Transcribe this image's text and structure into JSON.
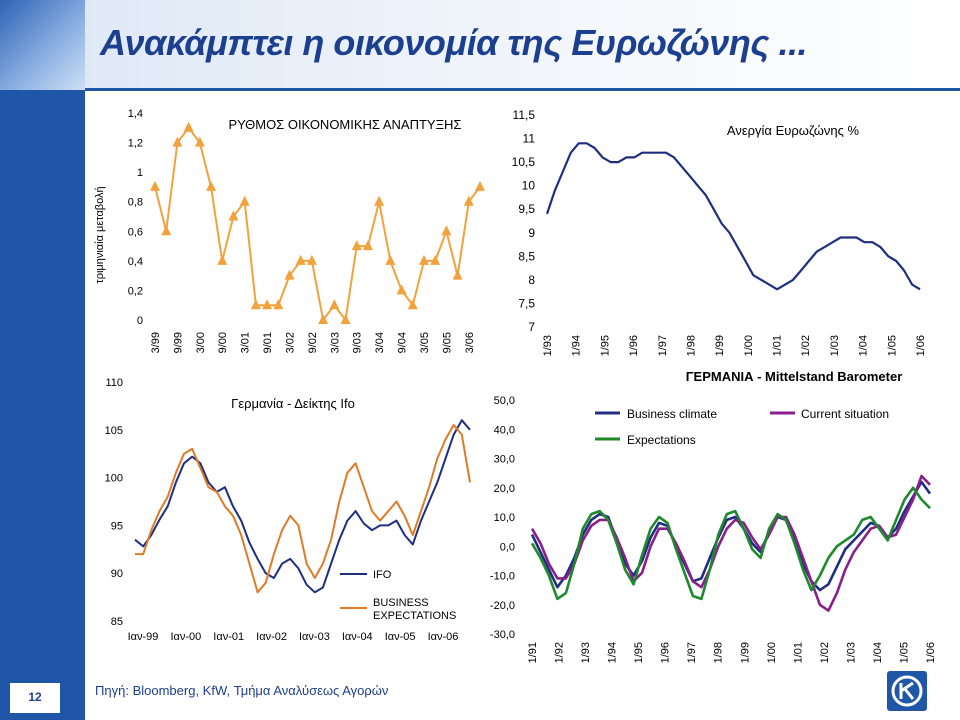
{
  "title": "Ανακάμπτει η οικονομία της Ευρωζώνης ...",
  "footer": {
    "source": "Πηγή: Bloomberg, KfW, Τμήμα Αναλύσεως Αγορών",
    "page_number": "12"
  },
  "colors": {
    "brand_blue": "#1f56a8",
    "title_blue": "#1c3f8f",
    "gdp_orange": "#f2a23c",
    "unemp_blue": "#1e2f82",
    "ifo_blue": "#1e2f82",
    "ifo_orange": "#e07a27",
    "mit_blue": "#1e2f82",
    "mit_magenta": "#8a1e8a",
    "mit_green": "#1f8a2c"
  },
  "chart_data": [
    {
      "type": "line",
      "title": "ΡΥΘΜΟΣ ΟΙΚΟΝΟΜΙΚΗΣ ΑΝΑΠΤΥΞΗΣ",
      "ylabel": "τριμηνιαία μεταβολή",
      "xlabel": "",
      "ylim": [
        0,
        1.4
      ],
      "yticks": [
        "0",
        "0,2",
        "0,4",
        "0,6",
        "0,8",
        "1",
        "1,2",
        "1,4"
      ],
      "xtick_labels": [
        "3/99",
        "9/99",
        "3/00",
        "9/00",
        "3/01",
        "9/01",
        "3/02",
        "9/02",
        "3/03",
        "9/03",
        "3/04",
        "9/04",
        "3/05",
        "9/05",
        "3/06"
      ],
      "series": [
        {
          "name": "",
          "values": [
            0.9,
            0.6,
            1.2,
            1.3,
            1.2,
            0.9,
            0.4,
            0.7,
            0.8,
            0.1,
            0.1,
            0.1,
            0.3,
            0.4,
            0.4,
            0.0,
            0.1,
            0.0,
            0.5,
            0.5,
            0.8,
            0.4,
            0.2,
            0.1,
            0.4,
            0.4,
            0.6,
            0.3,
            0.8,
            0.9
          ]
        }
      ]
    },
    {
      "type": "line",
      "title": "Ανεργία Ευρωζώνης %",
      "ylim": [
        7,
        11.5
      ],
      "yticks": [
        "7",
        "7,5",
        "8",
        "8,5",
        "9",
        "9,5",
        "10",
        "10,5",
        "11",
        "11,5"
      ],
      "xtick_labels": [
        "1/93",
        "1/94",
        "1/95",
        "1/96",
        "1/97",
        "1/98",
        "1/99",
        "1/00",
        "1/01",
        "1/02",
        "1/03",
        "1/04",
        "1/05",
        "1/06"
      ],
      "series": [
        {
          "name": "",
          "values": [
            9.4,
            9.9,
            10.3,
            10.7,
            10.9,
            10.9,
            10.8,
            10.6,
            10.5,
            10.5,
            10.6,
            10.6,
            10.7,
            10.7,
            10.7,
            10.7,
            10.6,
            10.4,
            10.2,
            10.0,
            9.8,
            9.5,
            9.2,
            9.0,
            8.7,
            8.4,
            8.1,
            8.0,
            7.9,
            7.8,
            7.9,
            8.0,
            8.2,
            8.4,
            8.6,
            8.7,
            8.8,
            8.9,
            8.9,
            8.9,
            8.8,
            8.8,
            8.7,
            8.5,
            8.4,
            8.2,
            7.9,
            7.8
          ]
        }
      ]
    },
    {
      "type": "line",
      "title": "Γερμανία - Δείκτης Ifo",
      "ylim": [
        85,
        110
      ],
      "yticks": [
        "85",
        "90",
        "95",
        "100",
        "105",
        "110"
      ],
      "xtick_labels": [
        "Ιαν-99",
        "Ιαν-00",
        "Ιαν-01",
        "Ιαν-02",
        "Ιαν-03",
        "Ιαν-04",
        "Ιαν-05",
        "Ιαν-06"
      ],
      "legend": [
        "IFO",
        "BUSINESS EXPECTATIONS"
      ],
      "legend_position": "bottom-right",
      "series": [
        {
          "name": "IFO",
          "values": [
            93.5,
            92.8,
            94.0,
            95.6,
            97.0,
            99.5,
            101.5,
            102.2,
            101.5,
            99.5,
            98.5,
            99.0,
            97.0,
            95.5,
            93.2,
            91.5,
            90.0,
            89.5,
            91.0,
            91.5,
            90.5,
            88.8,
            88.0,
            88.5,
            91.0,
            93.5,
            95.5,
            96.5,
            95.2,
            94.5,
            95.0,
            95.0,
            95.5,
            94.0,
            93.0,
            95.5,
            97.5,
            99.5,
            102.0,
            104.5,
            106.0,
            105.0
          ]
        },
        {
          "name": "BUSINESS EXPECTATIONS",
          "values": [
            92.0,
            92.0,
            94.5,
            96.5,
            98.0,
            100.5,
            102.5,
            103.0,
            101.0,
            99.0,
            98.5,
            97.0,
            96.0,
            94.0,
            91.0,
            88.0,
            89.0,
            92.0,
            94.5,
            96.0,
            95.0,
            91.0,
            89.5,
            91.0,
            93.5,
            97.5,
            100.5,
            101.5,
            99.0,
            96.5,
            95.5,
            96.5,
            97.5,
            96.0,
            94.0,
            96.5,
            99.0,
            102.0,
            104.0,
            105.5,
            104.5,
            99.5
          ]
        }
      ]
    },
    {
      "type": "line",
      "title": "ΓΕΡΜΑΝΙΑ - Mittelstand Barometer",
      "ylim": [
        -30,
        50
      ],
      "yticks": [
        "-30,0",
        "-20,0",
        "-10,0",
        "0,0",
        "10,0",
        "20,0",
        "30,0",
        "40,0",
        "50,0"
      ],
      "xtick_labels": [
        "1/91",
        "1/92",
        "1/93",
        "1/94",
        "1/95",
        "1/96",
        "1/97",
        "1/98",
        "1/99",
        "1/00",
        "1/01",
        "1/02",
        "1/03",
        "1/04",
        "1/05",
        "1/06"
      ],
      "legend": [
        "Business climate",
        "Current situation",
        "Expectations"
      ],
      "legend_position": "top",
      "series": [
        {
          "name": "Business climate",
          "values": [
            4,
            -2,
            -8,
            -14,
            -10,
            -4,
            4,
            9,
            11,
            10,
            2,
            -6,
            -10,
            -5,
            3,
            8,
            7,
            0,
            -6,
            -12,
            -11,
            -4,
            3,
            9,
            10,
            6,
            1,
            -2,
            5,
            10,
            9,
            2,
            -6,
            -12,
            -15,
            -13,
            -7,
            -1,
            2,
            5,
            8,
            7,
            3,
            6,
            12,
            17,
            22,
            18
          ]
        },
        {
          "name": "Current situation",
          "values": [
            6,
            1,
            -6,
            -11,
            -11,
            -6,
            2,
            7,
            9,
            9,
            3,
            -4,
            -12,
            -9,
            0,
            6,
            6,
            1,
            -5,
            -12,
            -14,
            -8,
            0,
            6,
            9,
            8,
            3,
            -1,
            4,
            10,
            10,
            4,
            -4,
            -12,
            -20,
            -22,
            -16,
            -8,
            -2,
            2,
            6,
            7,
            3,
            4,
            10,
            16,
            24,
            21
          ]
        },
        {
          "name": "Expectations",
          "values": [
            1,
            -4,
            -10,
            -18,
            -16,
            -6,
            6,
            11,
            12,
            9,
            1,
            -8,
            -13,
            -3,
            6,
            10,
            8,
            -1,
            -9,
            -17,
            -18,
            -8,
            4,
            11,
            12,
            6,
            -1,
            -4,
            6,
            11,
            9,
            1,
            -8,
            -15,
            -10,
            -4,
            0,
            2,
            4,
            9,
            10,
            6,
            2,
            9,
            16,
            20,
            16,
            13
          ]
        }
      ]
    }
  ]
}
